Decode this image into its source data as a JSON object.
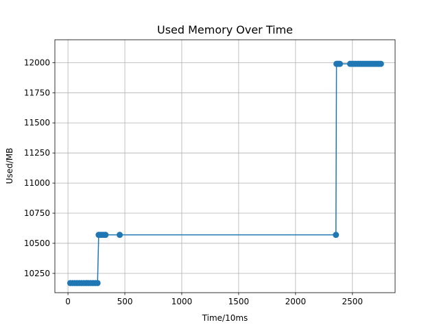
{
  "chart_data": {
    "type": "line",
    "title": "Used Memory Over Time",
    "xlabel": "Time/10ms",
    "ylabel": "Used/MB",
    "xlim": [
      -115,
      2875
    ],
    "ylim": [
      10090,
      12190
    ],
    "xticks": [
      0,
      500,
      1000,
      1500,
      2000,
      2500
    ],
    "yticks": [
      10250,
      10500,
      10750,
      11000,
      11250,
      11500,
      11750,
      12000
    ],
    "grid": true,
    "color": "#1f77b4",
    "series": [
      {
        "x": [
          20,
          40,
          60,
          80,
          100,
          120,
          140,
          160,
          180,
          200,
          220,
          240,
          260,
          270,
          285,
          300,
          315,
          330,
          455,
          2355,
          2360,
          2370,
          2380,
          2390,
          2480,
          2495,
          2510,
          2525,
          2540,
          2555,
          2570,
          2585,
          2600,
          2615,
          2630,
          2645,
          2660,
          2675,
          2690,
          2705,
          2720,
          2735,
          2750
        ],
        "values": [
          10170,
          10170,
          10170,
          10170,
          10170,
          10170,
          10170,
          10170,
          10170,
          10170,
          10170,
          10170,
          10170,
          10570,
          10570,
          10570,
          10570,
          10570,
          10570,
          10570,
          11990,
          11990,
          11990,
          11990,
          11990,
          11990,
          11990,
          11990,
          11990,
          11990,
          11990,
          11990,
          11990,
          11990,
          11990,
          11990,
          11990,
          11990,
          11990,
          11990,
          11990,
          11990,
          11990
        ]
      }
    ]
  }
}
